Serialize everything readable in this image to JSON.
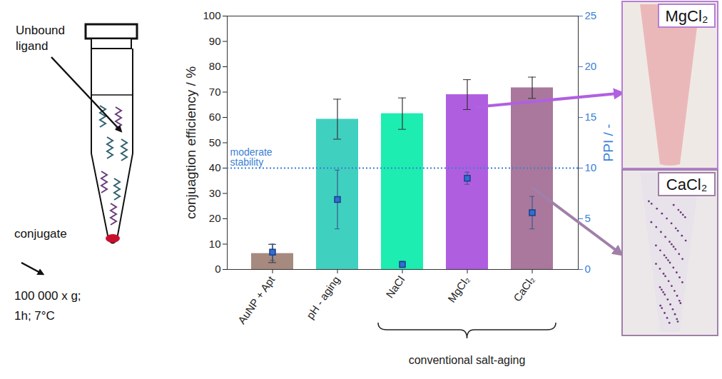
{
  "chart_data": {
    "type": "bar",
    "categories": [
      "AuNP + Apt",
      "pH - aging",
      "NaCl",
      "MgCl₂",
      "CaCl₂"
    ],
    "y_label": "conjuagtion efficiency / %",
    "y2_label": "PPI / -",
    "ylim": [
      0,
      100
    ],
    "yticks": [
      0,
      10,
      20,
      30,
      40,
      50,
      60,
      70,
      80,
      90,
      100
    ],
    "y2lim": [
      0,
      25
    ],
    "y2ticks": [
      0,
      5,
      10,
      15,
      20,
      25
    ],
    "series": [
      {
        "type": "bar",
        "colors": [
          "#a68a80",
          "#40d0c0",
          "#1dedb0",
          "#b05ee0",
          "#a9789c"
        ],
        "values": [
          6.3,
          59.3,
          61.5,
          69.0,
          71.7
        ],
        "errors": [
          3.6,
          7.9,
          6.2,
          5.9,
          4.2
        ]
      },
      {
        "type": "scatter",
        "axis": "y2",
        "marker": "square",
        "color": "#2f6fd0",
        "values": [
          1.7,
          6.9,
          0.5,
          9.0,
          5.6
        ],
        "errors": [
          0.8,
          2.9,
          0.3,
          0.6,
          1.6
        ]
      }
    ],
    "annotations": [
      {
        "text": "moderate stability",
        "y2": 10,
        "line_style": "dotted",
        "color": "#3a7fd5"
      }
    ],
    "bracket": {
      "text": "conventional salt-aging",
      "from": "NaCl",
      "to": "CaCl₂"
    }
  },
  "schematic": {
    "arrow_label": "Unbound ligand",
    "pellet_label": "conjugate",
    "conditions": [
      "100 000 x g;",
      "1h; 7°C"
    ]
  },
  "photos": [
    {
      "label": "MgCl₂",
      "category": "MgCl₂"
    },
    {
      "label": "CaCl₂",
      "category": "CaCl₂"
    }
  ]
}
